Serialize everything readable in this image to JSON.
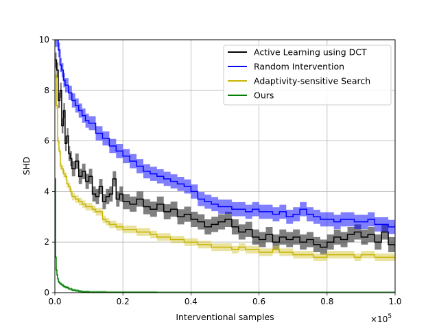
{
  "chart_data": {
    "type": "line",
    "title": "",
    "xlabel": "Interventional samples",
    "ylabel": "SHD",
    "x_scale_label": "×10",
    "x_scale_exponent": "5",
    "xlim": [
      0,
      1
    ],
    "ylim": [
      0,
      10
    ],
    "xticks": [
      0.0,
      0.2,
      0.4,
      0.6,
      0.8,
      1.0
    ],
    "xtick_labels": [
      "0.0",
      "0.2",
      "0.4",
      "0.6",
      "0.8",
      "1.0"
    ],
    "yticks": [
      0,
      2,
      4,
      6,
      8,
      10
    ],
    "ytick_labels": [
      "0",
      "2",
      "4",
      "6",
      "8",
      "10"
    ],
    "grid": true,
    "legend_position": "top-right",
    "series": [
      {
        "name": "Active Learning using DCT",
        "color": "#000000",
        "band_color": "#000000",
        "x": [
          0.0,
          0.005,
          0.01,
          0.015,
          0.02,
          0.025,
          0.03,
          0.035,
          0.04,
          0.045,
          0.05,
          0.06,
          0.07,
          0.08,
          0.09,
          0.1,
          0.11,
          0.12,
          0.13,
          0.14,
          0.15,
          0.16,
          0.17,
          0.18,
          0.19,
          0.2,
          0.22,
          0.24,
          0.26,
          0.28,
          0.3,
          0.32,
          0.34,
          0.36,
          0.38,
          0.4,
          0.42,
          0.44,
          0.46,
          0.48,
          0.5,
          0.52,
          0.54,
          0.56,
          0.58,
          0.6,
          0.62,
          0.64,
          0.66,
          0.68,
          0.7,
          0.72,
          0.74,
          0.76,
          0.78,
          0.8,
          0.82,
          0.84,
          0.86,
          0.88,
          0.9,
          0.92,
          0.94,
          0.96,
          0.98,
          1.0
        ],
        "values": [
          9.2,
          8.8,
          7.6,
          8.0,
          6.6,
          7.2,
          5.9,
          6.2,
          5.5,
          5.3,
          4.9,
          5.2,
          4.6,
          4.8,
          4.4,
          4.6,
          3.9,
          3.8,
          4.2,
          3.6,
          3.8,
          3.9,
          4.5,
          3.7,
          3.9,
          3.6,
          3.5,
          3.7,
          3.4,
          3.3,
          3.5,
          3.2,
          3.3,
          3.0,
          3.1,
          2.9,
          2.8,
          2.6,
          2.7,
          2.8,
          2.9,
          2.6,
          2.4,
          2.5,
          2.2,
          2.1,
          2.3,
          2.0,
          2.2,
          2.1,
          2.2,
          2.0,
          2.1,
          1.9,
          1.8,
          2.0,
          2.2,
          2.1,
          2.3,
          2.4,
          2.2,
          2.3,
          2.0,
          2.4,
          1.9,
          1.8
        ],
        "band": 0.3
      },
      {
        "name": "Random Intervention",
        "color": "#0000ff",
        "band_color": "#0000ff",
        "x": [
          0.0,
          0.005,
          0.01,
          0.015,
          0.02,
          0.025,
          0.03,
          0.04,
          0.05,
          0.06,
          0.07,
          0.08,
          0.09,
          0.1,
          0.12,
          0.14,
          0.16,
          0.18,
          0.2,
          0.22,
          0.24,
          0.26,
          0.28,
          0.3,
          0.32,
          0.34,
          0.36,
          0.38,
          0.4,
          0.42,
          0.44,
          0.46,
          0.48,
          0.5,
          0.52,
          0.54,
          0.56,
          0.58,
          0.6,
          0.62,
          0.64,
          0.66,
          0.68,
          0.7,
          0.72,
          0.74,
          0.76,
          0.78,
          0.8,
          0.82,
          0.84,
          0.86,
          0.88,
          0.9,
          0.92,
          0.94,
          0.96,
          0.98,
          1.0
        ],
        "values": [
          10.0,
          10.0,
          9.6,
          9.0,
          8.8,
          8.4,
          8.2,
          7.9,
          7.6,
          7.4,
          7.2,
          7.0,
          6.8,
          6.7,
          6.3,
          6.1,
          5.8,
          5.6,
          5.4,
          5.2,
          5.0,
          4.8,
          4.7,
          4.6,
          4.5,
          4.4,
          4.3,
          4.2,
          4.0,
          3.7,
          3.6,
          3.5,
          3.4,
          3.4,
          3.3,
          3.3,
          3.2,
          3.3,
          3.2,
          3.2,
          3.1,
          3.2,
          3.0,
          3.1,
          3.3,
          3.1,
          3.0,
          2.9,
          2.9,
          2.8,
          2.9,
          2.9,
          2.8,
          2.8,
          2.9,
          2.7,
          2.7,
          2.6,
          2.7
        ],
        "band": 0.28
      },
      {
        "name": "Adaptivity-sensitive Search",
        "color": "#c8b400",
        "band_color": "#d6c840",
        "x": [
          0.0,
          0.004,
          0.008,
          0.012,
          0.016,
          0.02,
          0.025,
          0.03,
          0.035,
          0.04,
          0.045,
          0.05,
          0.06,
          0.07,
          0.08,
          0.09,
          0.1,
          0.11,
          0.12,
          0.13,
          0.14,
          0.15,
          0.16,
          0.18,
          0.2,
          0.22,
          0.24,
          0.26,
          0.28,
          0.3,
          0.32,
          0.34,
          0.36,
          0.38,
          0.4,
          0.42,
          0.44,
          0.46,
          0.48,
          0.5,
          0.52,
          0.54,
          0.56,
          0.58,
          0.6,
          0.62,
          0.64,
          0.66,
          0.68,
          0.7,
          0.72,
          0.74,
          0.76,
          0.78,
          0.8,
          0.82,
          0.84,
          0.86,
          0.88,
          0.9,
          0.92,
          0.94,
          0.96,
          0.98,
          1.0
        ],
        "values": [
          8.6,
          7.4,
          6.0,
          5.6,
          5.0,
          4.9,
          4.7,
          4.6,
          4.3,
          4.2,
          4.0,
          3.8,
          3.7,
          3.6,
          3.5,
          3.4,
          3.4,
          3.3,
          3.2,
          3.2,
          2.9,
          2.8,
          2.7,
          2.6,
          2.5,
          2.5,
          2.4,
          2.4,
          2.3,
          2.2,
          2.2,
          2.1,
          2.1,
          2.0,
          2.0,
          1.9,
          1.9,
          1.8,
          1.8,
          1.8,
          1.7,
          1.8,
          1.7,
          1.7,
          1.6,
          1.6,
          1.7,
          1.6,
          1.6,
          1.5,
          1.5,
          1.5,
          1.4,
          1.4,
          1.5,
          1.5,
          1.5,
          1.5,
          1.4,
          1.5,
          1.5,
          1.4,
          1.4,
          1.4,
          1.4
        ],
        "band": 0.15
      },
      {
        "name": "Ours",
        "color": "#008000",
        "band_color": "#008000",
        "x": [
          0.0,
          0.002,
          0.004,
          0.006,
          0.008,
          0.01,
          0.012,
          0.015,
          0.02,
          0.025,
          0.03,
          0.035,
          0.04,
          0.05,
          0.06,
          0.07,
          0.08,
          0.1,
          0.15,
          0.2,
          0.3,
          0.4,
          0.5,
          0.6,
          0.7,
          0.8,
          0.9,
          1.0
        ],
        "values": [
          4.5,
          1.4,
          0.9,
          0.7,
          0.55,
          0.45,
          0.4,
          0.35,
          0.3,
          0.25,
          0.22,
          0.2,
          0.15,
          0.1,
          0.08,
          0.05,
          0.03,
          0.02,
          0.01,
          0.01,
          0.0,
          0.0,
          0.0,
          0.0,
          0.0,
          0.0,
          0.0,
          0.0
        ],
        "band": 0.05
      }
    ]
  }
}
